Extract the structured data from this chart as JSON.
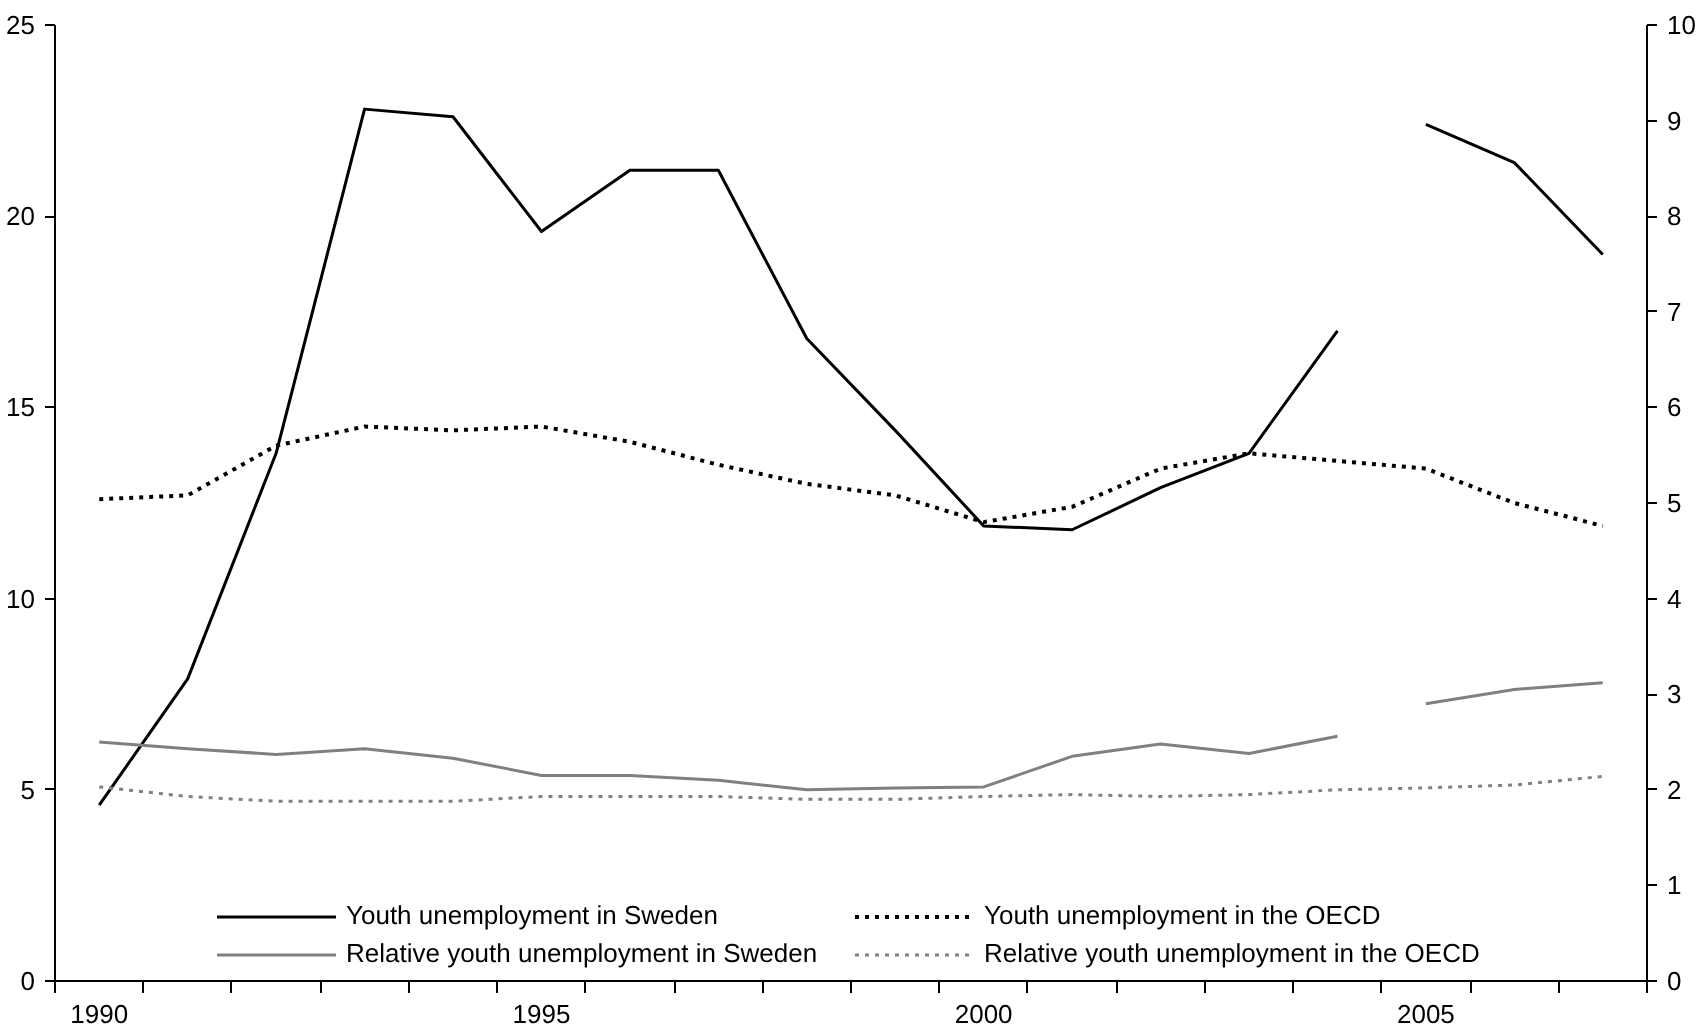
{
  "chart_data": {
    "type": "line",
    "categories": [
      "1990",
      null,
      null,
      null,
      null,
      "1995",
      null,
      null,
      null,
      null,
      "2000",
      null,
      null,
      null,
      null,
      "2005",
      null,
      null
    ],
    "ylim": [
      0,
      25
    ],
    "yticks": [
      0,
      5,
      10,
      15,
      20,
      25
    ],
    "y2lim": [
      0,
      10
    ],
    "y2ticks": [
      0,
      1,
      2,
      3,
      4,
      5,
      6,
      7,
      8,
      9,
      10
    ],
    "grid": false,
    "legend": "bottom",
    "series": [
      {
        "name": "Youth unemployment in Sweden",
        "color": "#000000",
        "line_style": "solid",
        "values": [
          4.6,
          7.9,
          13.8,
          22.8,
          22.6,
          19.6,
          21.2,
          21.2,
          16.8,
          14.4,
          11.9,
          11.8,
          12.9,
          13.8,
          17.0,
          null,
          null,
          null
        ]
      },
      {
        "color": "#000000",
        "line_style": "solid",
        "values": [
          null,
          null,
          null,
          null,
          null,
          null,
          null,
          null,
          null,
          null,
          null,
          null,
          null,
          null,
          null,
          22.4,
          21.4,
          19.0
        ]
      },
      {
        "name": "Youth unemployment in the OECD",
        "color": "#000000",
        "line_style": "dotted",
        "values": [
          12.6,
          12.7,
          14.0,
          14.5,
          14.4,
          14.5,
          14.1,
          13.5,
          13.0,
          12.7,
          12.0,
          12.4,
          13.4,
          13.8,
          13.6,
          13.4,
          12.5,
          11.9
        ]
      },
      {
        "name": "Relative youth unemployment in Sweden",
        "color": "#808080",
        "line_style": "solid",
        "axis": "y2",
        "values": [
          2.5,
          2.43,
          2.37,
          2.43,
          2.33,
          2.15,
          2.15,
          2.1,
          2.0,
          2.02,
          2.03,
          2.35,
          2.48,
          2.38,
          2.56,
          null,
          null,
          null
        ]
      },
      {
        "color": "#808080",
        "line_style": "solid",
        "axis": "y2",
        "values": [
          null,
          null,
          null,
          null,
          null,
          null,
          null,
          null,
          null,
          null,
          null,
          null,
          null,
          null,
          null,
          2.9,
          3.05,
          3.12
        ]
      },
      {
        "name": "Relative youth unemployment in the OECD",
        "color": "#808080",
        "line_style": "dotted",
        "axis": "y2",
        "values": [
          2.03,
          1.93,
          1.88,
          1.88,
          1.88,
          1.93,
          1.93,
          1.93,
          1.9,
          1.9,
          1.93,
          1.95,
          1.93,
          1.95,
          2.0,
          2.02,
          2.05,
          2.14
        ]
      }
    ]
  }
}
